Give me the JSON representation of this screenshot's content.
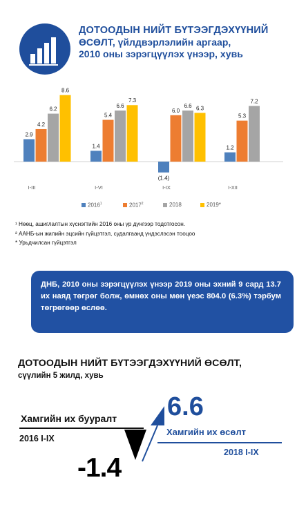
{
  "header": {
    "title_line1": "ДОТООДЫН НИЙТ БҮТЭЭГДЭХҮҮНИЙ",
    "title_line2": "ӨСӨЛТ, үйлдвэрлэлийн аргаар,",
    "title_line3": "2010 оны зэрэгцүүлэх үнээр, хувь"
  },
  "legend": {
    "items": [
      {
        "label": "2016",
        "sup": "1",
        "color": "#4f81bd"
      },
      {
        "label": "2017",
        "sup": "2",
        "color": "#ed7d31"
      },
      {
        "label": "2018",
        "sup": "",
        "color": "#a5a5a5"
      },
      {
        "label": "2019*",
        "sup": "",
        "color": "#ffc000"
      }
    ]
  },
  "chart_data": {
    "type": "bar",
    "categories": [
      "I-III",
      "I-VI",
      "I-IX",
      "I-XII"
    ],
    "series": [
      {
        "name": "2016¹",
        "color": "#4f81bd",
        "values": [
          2.9,
          1.4,
          -1.4,
          1.2
        ],
        "labels": [
          "2.9",
          "1.4",
          "(1.4)",
          "1.2"
        ]
      },
      {
        "name": "2017²",
        "color": "#ed7d31",
        "values": [
          4.2,
          5.4,
          6.0,
          5.3
        ],
        "labels": [
          "4.2",
          "5.4",
          "6.0",
          "5.3"
        ]
      },
      {
        "name": "2018",
        "color": "#a5a5a5",
        "values": [
          6.2,
          6.6,
          6.6,
          7.2
        ],
        "labels": [
          "6.2",
          "6.6",
          "6.6",
          "7.2"
        ]
      },
      {
        "name": "2019*",
        "color": "#ffc000",
        "values": [
          8.6,
          7.3,
          6.3,
          null
        ],
        "labels": [
          "8.6",
          "7.3",
          "6.3",
          ""
        ]
      }
    ],
    "ylim": [
      -2,
      9
    ],
    "grid": false,
    "legend_position": "bottom"
  },
  "footnotes": {
    "note1": "¹ Нөөц, ашиглалтын хүснэгтийн 2016 оны үр дүнгээр тодотгосон.",
    "note2": "² ААНБ-ын жилийн эцсийн гүйцэтгэл, судалгаанд үндэслэсэн тооцоо",
    "note3": "* Урьдчилсан гүйцэтгэл"
  },
  "summary": {
    "text": "ДНБ, 2010 оны зэрэгцүүлэх үнээр 2019 оны эхний 9 сард 13.7 их наяд төгрөг болж, өмнөх оны мөн үеэс 804.0 (6.3%) тэрбум төгрөгөөр өслөө."
  },
  "section": {
    "title": "ДОТООДЫН НИЙТ БҮТЭЭГДЭХҮҮНИЙ ӨСӨЛТ,",
    "subtitle": "сүүлийн 5 жилд, хувь"
  },
  "decline": {
    "label": "Хамгийн их бууралт",
    "period": "2016 I-IX",
    "value": "-1.4"
  },
  "growth": {
    "value": "6.6",
    "label": "Хамгийн их өсөлт",
    "period": "2018 I-IX"
  },
  "colors": {
    "brand_blue": "#1f4e9c",
    "summary_bg": "#2151a3"
  }
}
